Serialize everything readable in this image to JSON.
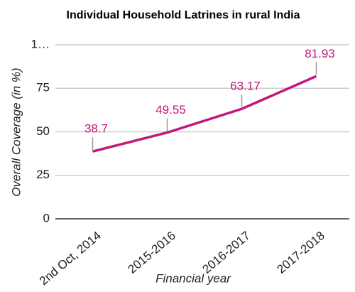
{
  "chart_data": {
    "type": "line",
    "title": "Individual Household Latrines in rural India",
    "x_label": "Financial year",
    "y_label": "Overall Coverage (in %)",
    "categories": [
      "2nd Oct, 2014",
      "2015-2016",
      "2016-2017",
      "2017-2018"
    ],
    "series": [
      {
        "name": "Overall Coverage",
        "color": "#c2187a",
        "values": [
          38.7,
          49.55,
          63.17,
          81.93
        ]
      }
    ],
    "ylim": [
      0,
      100
    ],
    "yticks": [
      0,
      25,
      50,
      75,
      {
        "value": 100,
        "label": "1…"
      }
    ],
    "grid": true
  }
}
